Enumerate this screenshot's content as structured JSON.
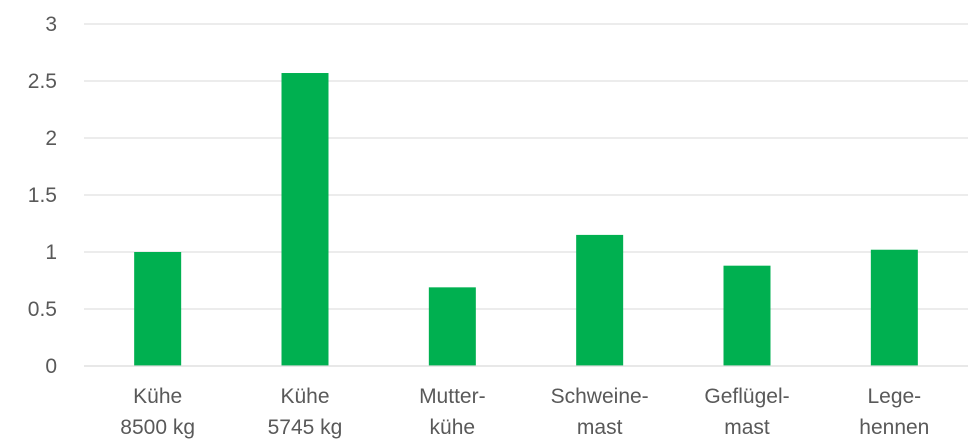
{
  "chart_data": {
    "type": "bar",
    "categories": [
      [
        "Kühe",
        "8500 kg"
      ],
      [
        "Kühe",
        "5745 kg"
      ],
      [
        "Mutter-",
        "kühe"
      ],
      [
        "Schweine-",
        "mast"
      ],
      [
        "Geflügel-",
        "mast"
      ],
      [
        "Lege-",
        "hennen"
      ]
    ],
    "values": [
      1.0,
      2.57,
      0.69,
      1.15,
      0.88,
      1.02
    ],
    "yticks": [
      "0",
      "0.5",
      "1",
      "1.5",
      "2",
      "2.5",
      "3"
    ],
    "ylim": [
      0,
      3
    ],
    "grid": true,
    "legend": "none",
    "colors": {
      "bar": "#00b050"
    }
  }
}
